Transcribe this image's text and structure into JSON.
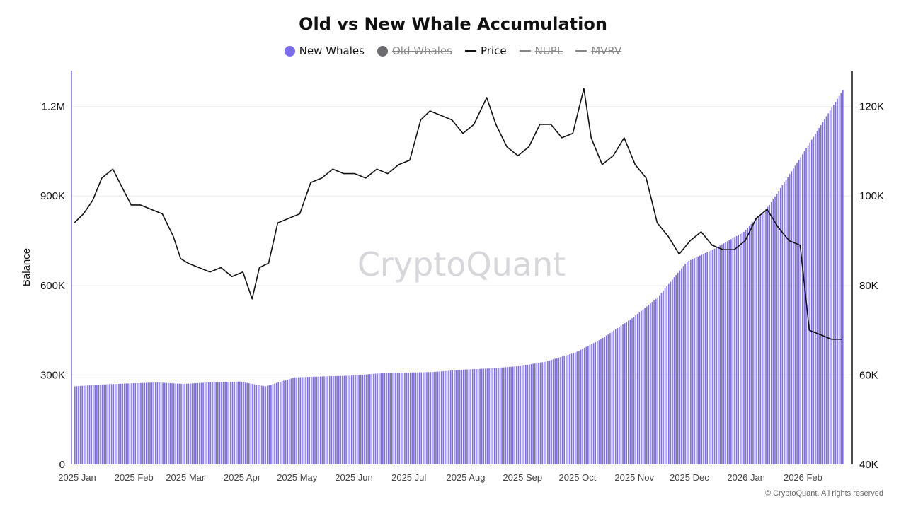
{
  "colors": {
    "new_whales": "#7b6cf0",
    "old_whales": "#6b6b70",
    "price": "#111111",
    "nupl": "#777777",
    "mvrv": "#777777",
    "grid": "#eeeeee",
    "axis": "#111111"
  },
  "legend": [
    {
      "label": "New Whales",
      "marker": "dot",
      "color": "#7b6cf0",
      "active": true
    },
    {
      "label": "Old Whales",
      "marker": "dot",
      "color": "#6b6b70",
      "active": false
    },
    {
      "label": "Price",
      "marker": "line",
      "color": "#111111",
      "active": true
    },
    {
      "label": "NUPL",
      "marker": "line",
      "color": "#888888",
      "active": false
    },
    {
      "label": "MVRV",
      "marker": "line",
      "color": "#888888",
      "active": false
    }
  ],
  "watermark": "CryptoQuant",
  "credit": "© CryptoQuant. All rights reserved",
  "chart_data": {
    "type": "bar",
    "title": "Old vs New Whale Accumulation",
    "xlabel": "",
    "ylabel": "Balance",
    "ylim": [
      0,
      1320000
    ],
    "y2lim": [
      40000,
      128000
    ],
    "grid": true,
    "legend_position": "top-center",
    "x_range": [
      "2025-01-01",
      "2026-02-24"
    ],
    "x_tick_labels": [
      "2025 Jan",
      "2025 Feb",
      "2025 Mar",
      "2025 Apr",
      "2025 May",
      "2025 Jun",
      "2025 Jul",
      "2025 Aug",
      "2025 Sep",
      "2025 Oct",
      "2025 Nov",
      "2025 Dec",
      "2026 Jan",
      "2026 Feb"
    ],
    "y_ticks": [
      0,
      300000,
      600000,
      900000,
      1200000
    ],
    "y_tick_labels": [
      "0",
      "300K",
      "600K",
      "900K",
      "1.2M"
    ],
    "y2_ticks": [
      40000,
      60000,
      80000,
      100000,
      120000
    ],
    "y2_tick_labels": [
      "40K",
      "60K",
      "80K",
      "100K",
      "120K"
    ],
    "series": [
      {
        "name": "New Whales",
        "type": "bar",
        "axis": "left",
        "dates": [
          "2025-01-01",
          "2025-01-15",
          "2025-02-01",
          "2025-02-15",
          "2025-03-01",
          "2025-03-15",
          "2025-04-01",
          "2025-04-15",
          "2025-05-01",
          "2025-05-15",
          "2025-06-01",
          "2025-06-15",
          "2025-07-01",
          "2025-07-15",
          "2025-08-01",
          "2025-08-15",
          "2025-09-01",
          "2025-09-15",
          "2025-10-01",
          "2025-10-15",
          "2025-11-01",
          "2025-11-15",
          "2025-12-01",
          "2025-12-15",
          "2026-01-01",
          "2026-01-15",
          "2026-02-01",
          "2026-02-24"
        ],
        "values": [
          262000,
          268000,
          272000,
          275000,
          270000,
          275000,
          278000,
          262000,
          292000,
          295000,
          298000,
          305000,
          308000,
          310000,
          318000,
          322000,
          330000,
          345000,
          375000,
          420000,
          490000,
          560000,
          680000,
          720000,
          780000,
          870000,
          1030000,
          1255000
        ]
      },
      {
        "name": "Price",
        "type": "line",
        "axis": "right",
        "dates": [
          "2025-01-01",
          "2025-01-06",
          "2025-01-11",
          "2025-01-16",
          "2025-01-22",
          "2025-01-27",
          "2025-02-01",
          "2025-02-06",
          "2025-02-12",
          "2025-02-18",
          "2025-02-24",
          "2025-02-28",
          "2025-03-04",
          "2025-03-10",
          "2025-03-16",
          "2025-03-22",
          "2025-03-28",
          "2025-04-03",
          "2025-04-08",
          "2025-04-12",
          "2025-04-17",
          "2025-04-22",
          "2025-04-28",
          "2025-05-04",
          "2025-05-10",
          "2025-05-16",
          "2025-05-22",
          "2025-05-28",
          "2025-06-03",
          "2025-06-09",
          "2025-06-15",
          "2025-06-21",
          "2025-06-27",
          "2025-07-03",
          "2025-07-09",
          "2025-07-14",
          "2025-07-20",
          "2025-07-26",
          "2025-08-01",
          "2025-08-07",
          "2025-08-14",
          "2025-08-19",
          "2025-08-25",
          "2025-08-31",
          "2025-09-06",
          "2025-09-12",
          "2025-09-18",
          "2025-09-24",
          "2025-09-30",
          "2025-10-06",
          "2025-10-10",
          "2025-10-16",
          "2025-10-22",
          "2025-10-28",
          "2025-11-03",
          "2025-11-09",
          "2025-11-15",
          "2025-11-21",
          "2025-11-27",
          "2025-12-03",
          "2025-12-09",
          "2025-12-15",
          "2025-12-21",
          "2025-12-27",
          "2026-01-02",
          "2026-01-08",
          "2026-01-14",
          "2026-01-20",
          "2026-01-26",
          "2026-02-01",
          "2026-02-06",
          "2026-02-12",
          "2026-02-18",
          "2026-02-24"
        ],
        "values": [
          94000,
          96000,
          99000,
          104000,
          106000,
          102000,
          98000,
          98000,
          97000,
          96000,
          91000,
          86000,
          85000,
          84000,
          83000,
          84000,
          82000,
          83000,
          77000,
          84000,
          85000,
          94000,
          95000,
          96000,
          103000,
          104000,
          106000,
          105000,
          105000,
          104000,
          106000,
          105000,
          107000,
          108000,
          117000,
          119000,
          118000,
          117000,
          114000,
          116000,
          122000,
          116000,
          111000,
          109000,
          111000,
          116000,
          116000,
          113000,
          114000,
          124000,
          113000,
          107000,
          109000,
          113000,
          107000,
          104000,
          94000,
          91000,
          87000,
          90000,
          92000,
          89000,
          88000,
          88000,
          90000,
          95000,
          97000,
          93000,
          90000,
          89000,
          70000,
          69000,
          68000,
          68000
        ]
      }
    ]
  }
}
